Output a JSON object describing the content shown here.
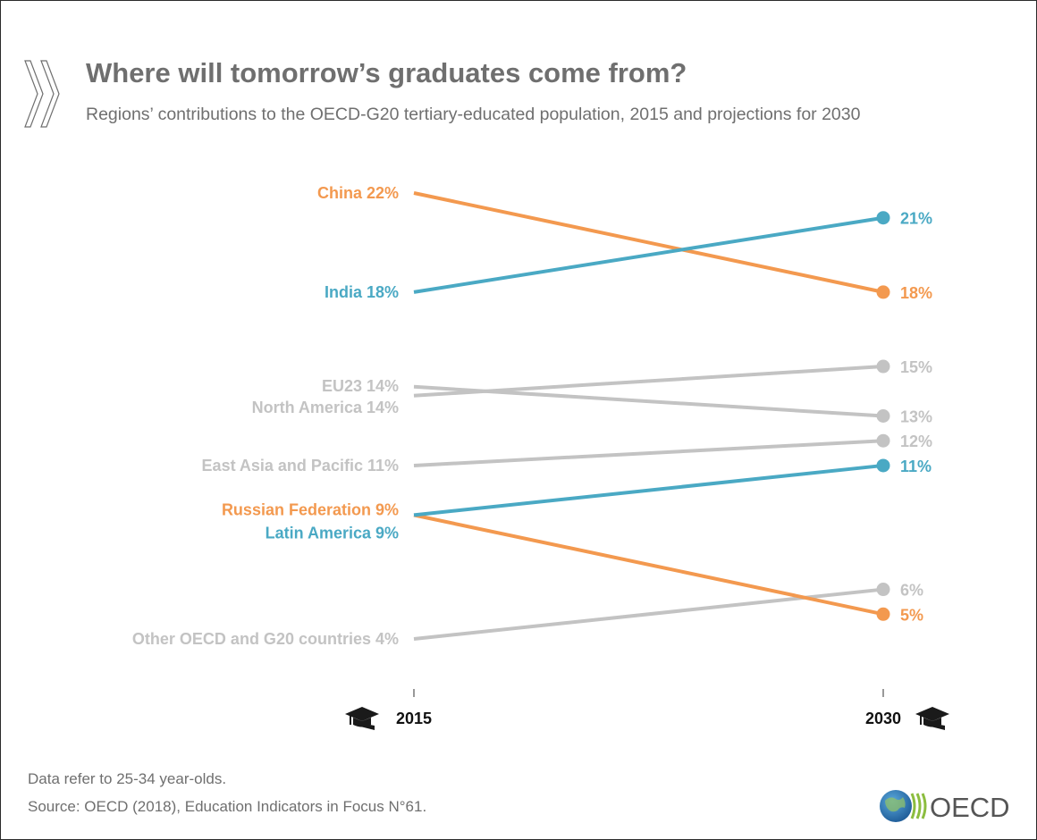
{
  "header": {
    "title": "Where will tomorrow’s graduates come from?",
    "subtitle": "Regions’ contributions to the OECD-G20 tertiary-educated population, 2015 and projections for 2030"
  },
  "footer": {
    "note": "Data refer to 25-34 year-olds.",
    "source": "Source: OECD (2018), Education Indicators in Focus N°61.",
    "logo_text": "OECD"
  },
  "icons": {
    "axis": "graduation-cap-icon",
    "header": "double-chevron-icon",
    "logo": "globe-icon"
  },
  "colors": {
    "highlight_orange": "#f3994f",
    "highlight_blue": "#4aa9c4",
    "muted_gray": "#c3c3c3",
    "text_gray": "#6f6f6f"
  },
  "chart_data": {
    "type": "slope",
    "x": [
      "2015",
      "2030"
    ],
    "series": [
      {
        "name": "China",
        "start_label": "China 22%",
        "end_label": "18%",
        "values": [
          22,
          18
        ],
        "color": "#f3994f"
      },
      {
        "name": "India",
        "start_label": "India 18%",
        "end_label": "21%",
        "values": [
          18,
          21
        ],
        "color": "#4aa9c4"
      },
      {
        "name": "EU23",
        "start_label": "EU23 14%",
        "end_label": "13%",
        "values": [
          14,
          13
        ],
        "color": "#c3c3c3"
      },
      {
        "name": "North America",
        "start_label": "North America 14%",
        "end_label": "15%",
        "values": [
          14,
          15
        ],
        "color": "#c3c3c3"
      },
      {
        "name": "East Asia and Pacific",
        "start_label": "East Asia and Pacific 11%",
        "end_label": "12%",
        "values": [
          11,
          12
        ],
        "color": "#c3c3c3"
      },
      {
        "name": "Russian Federation",
        "start_label": "Russian Federation 9%",
        "end_label": "5%",
        "values": [
          9,
          5
        ],
        "color": "#f3994f"
      },
      {
        "name": "Latin America",
        "start_label": "Latin America 9%",
        "end_label": "11%",
        "values": [
          9,
          11
        ],
        "color": "#4aa9c4"
      },
      {
        "name": "Other OECD and G20 countries",
        "start_label": "Other OECD and G20 countries 4%",
        "end_label": "6%",
        "values": [
          4,
          6
        ],
        "color": "#c3c3c3"
      }
    ]
  }
}
